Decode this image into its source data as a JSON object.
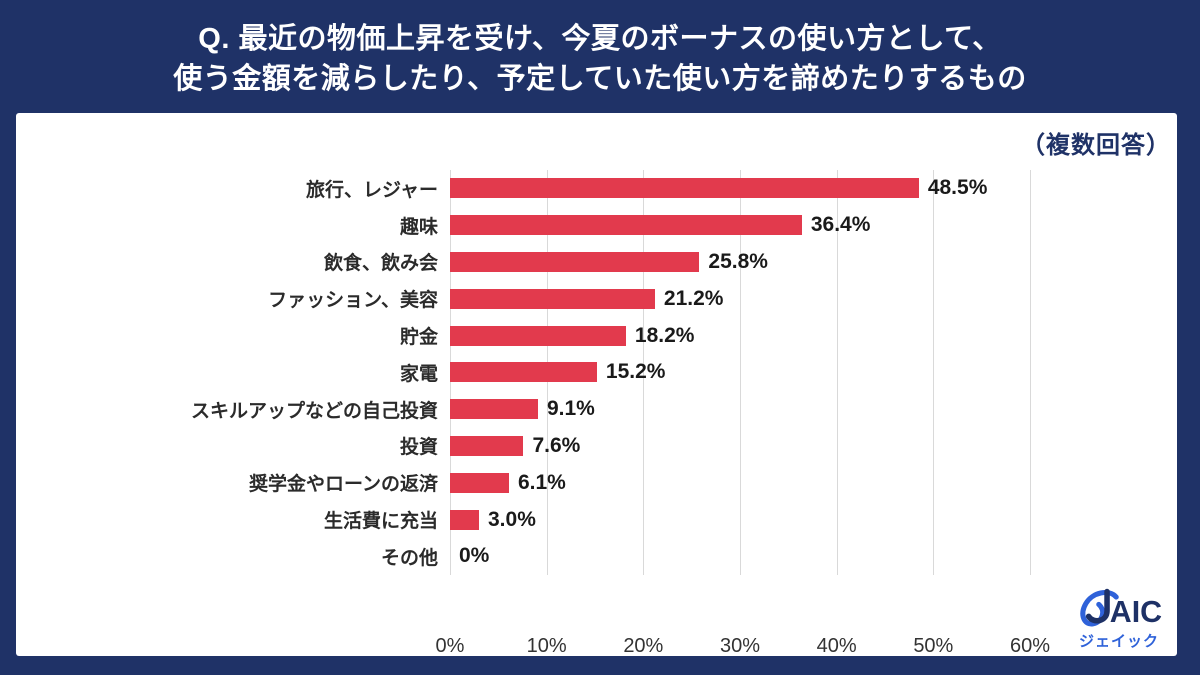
{
  "header": {
    "title_line1": "Q. 最近の物価上昇を受け、今夏のボーナスの使い方として、",
    "title_line2": "使う金額を減らしたり、予定していた使い方を諦めたりするもの"
  },
  "panel": {
    "note": "（複数回答）"
  },
  "chart_data": {
    "type": "bar",
    "orientation": "horizontal",
    "title": "Q. 最近の物価上昇を受け、今夏のボーナスの使い方として、使う金額を減らしたり、予定していた使い方を諦めたりするもの",
    "subtitle": "（複数回答）",
    "categories": [
      "旅行、レジャー",
      "趣味",
      "飲食、飲み会",
      "ファッション、美容",
      "貯金",
      "家電",
      "スキルアップなどの自己投資",
      "投資",
      "奨学金やローンの返済",
      "生活費に充当",
      "その他"
    ],
    "values": [
      48.5,
      36.4,
      25.8,
      21.2,
      18.2,
      15.2,
      9.1,
      7.6,
      6.1,
      3.0,
      0
    ],
    "value_labels": [
      "48.5%",
      "36.4%",
      "25.8%",
      "21.2%",
      "18.2%",
      "15.2%",
      "9.1%",
      "7.6%",
      "6.1%",
      "3.0%",
      "0%"
    ],
    "xlim": [
      0,
      60
    ],
    "x_tick_values": [
      0,
      10,
      20,
      30,
      40,
      50,
      60
    ],
    "x_tick_labels": [
      "0%",
      "10%",
      "20%",
      "30%",
      "40%",
      "50%",
      "60%"
    ],
    "grid": true,
    "legend_position": "none",
    "bar_color": "#e23a4d"
  },
  "logo": {
    "brand": "JAIC",
    "brand_text": "AIC",
    "subtext": "ジェイック"
  },
  "colors": {
    "header_navy": "#1f3267",
    "panel_bg": "#ffffff",
    "bar_red": "#e23a4d",
    "grid_line": "#d9d9d9",
    "label_text": "#2b2b2b",
    "logo_navy": "#1e3166",
    "logo_blue": "#2f62d9"
  }
}
